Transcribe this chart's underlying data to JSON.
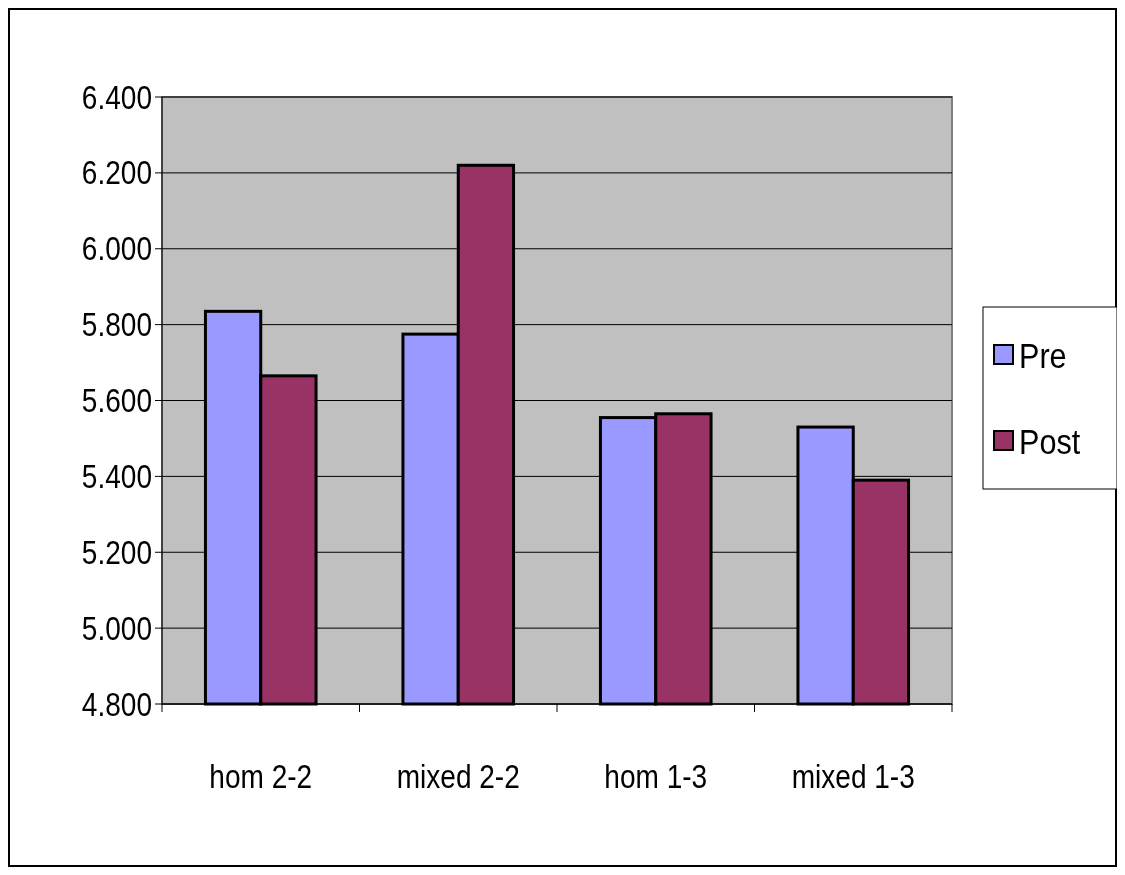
{
  "chart_data": {
    "type": "bar",
    "categories": [
      "hom 2-2",
      "mixed 2-2",
      "hom 1-3",
      "mixed 1-3"
    ],
    "series": [
      {
        "name": "Pre",
        "color": "#9999ff",
        "values": [
          5.835,
          5.775,
          5.555,
          5.53
        ]
      },
      {
        "name": "Post",
        "color": "#993366",
        "values": [
          5.665,
          6.22,
          5.565,
          5.39
        ]
      }
    ],
    "ylim": [
      4.8,
      6.4
    ],
    "yticks": [
      {
        "value": 4.8,
        "label": "4.800"
      },
      {
        "value": 5.0,
        "label": "5.000"
      },
      {
        "value": 5.2,
        "label": "5.200"
      },
      {
        "value": 5.4,
        "label": "5.400"
      },
      {
        "value": 5.6,
        "label": "5.600"
      },
      {
        "value": 5.8,
        "label": "5.800"
      },
      {
        "value": 6.0,
        "label": "6.000"
      },
      {
        "value": 6.2,
        "label": "6.200"
      },
      {
        "value": 6.4,
        "label": "6.400"
      }
    ],
    "grid": "y",
    "legend": "right"
  }
}
